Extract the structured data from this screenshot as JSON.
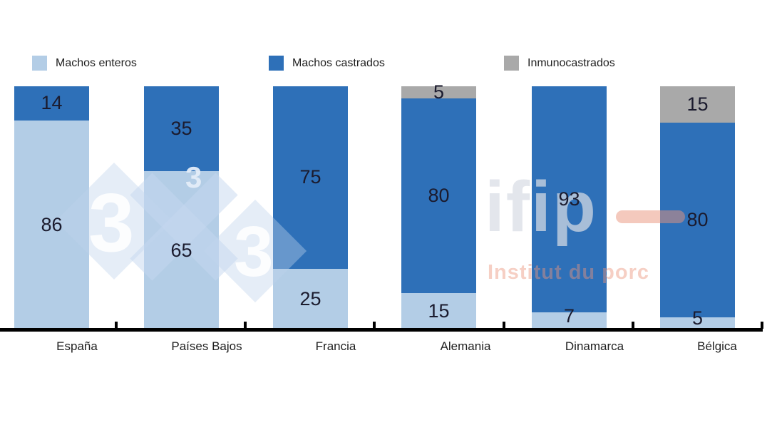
{
  "chart_data": {
    "type": "bar",
    "stacked": true,
    "title": "",
    "categories": [
      "España",
      "Países Bajos",
      "Francia",
      "Alemania",
      "Dinamarca",
      "Bélgica"
    ],
    "series": [
      {
        "name": "Machos enteros",
        "color": "#b3cde6",
        "values": [
          86,
          65,
          25,
          15,
          7,
          5
        ]
      },
      {
        "name": "Machos castrados",
        "color": "#2e70b8",
        "values": [
          14,
          35,
          75,
          80,
          93,
          80
        ]
      },
      {
        "name": "Inmunocastrados",
        "color": "#a9a9a9",
        "values": [
          0,
          0,
          0,
          5,
          0,
          15
        ]
      }
    ],
    "ylim": [
      0,
      100
    ],
    "grid": false,
    "legend_position": "top",
    "value_labels_shown": true,
    "axis_color": "#000000"
  },
  "legend": {
    "items": [
      {
        "label": "Machos enteros",
        "color": "#b3cde6"
      },
      {
        "label": "Machos castrados",
        "color": "#2e70b8"
      },
      {
        "label": "Inmunocastrados",
        "color": "#a9a9a9"
      }
    ]
  },
  "watermarks": {
    "brand_3x3": {
      "left_digit": "3",
      "small_digit": "3",
      "right_digit": "3",
      "diamond_color": "#dae4f3"
    },
    "ifip": {
      "logo": "ifip",
      "tagline": "Institut du porc",
      "accent_color": "#ea947c"
    }
  }
}
